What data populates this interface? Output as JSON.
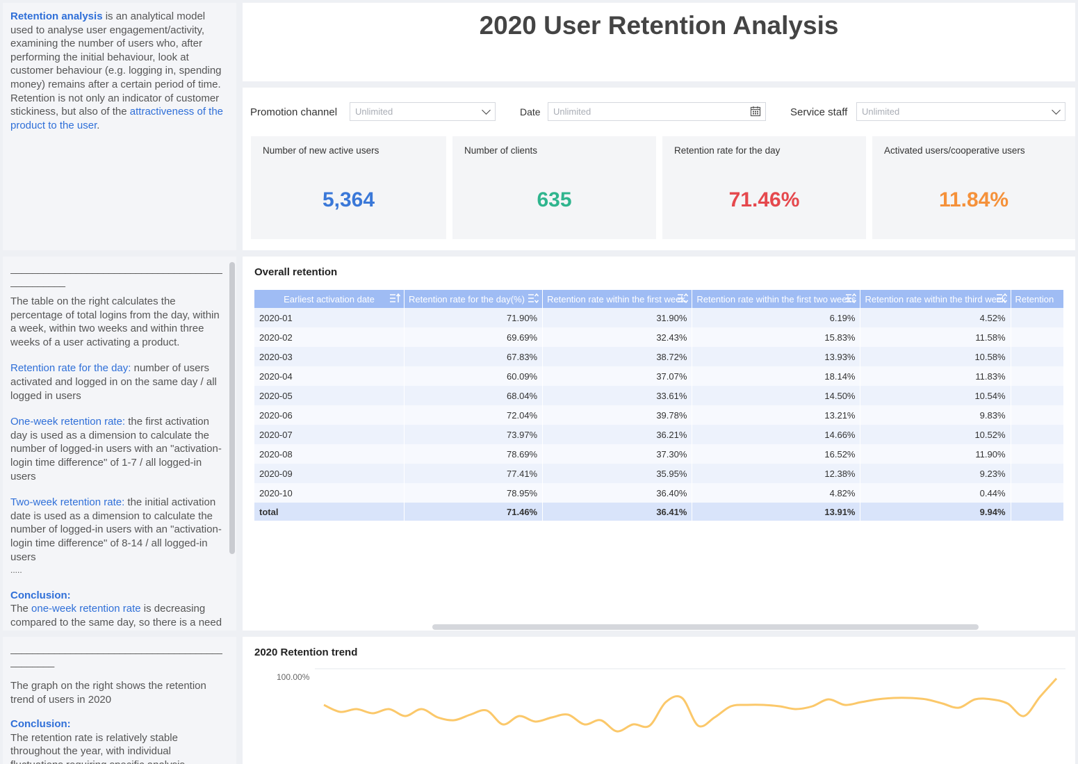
{
  "intro": {
    "term": "Retention analysis",
    "text1": " is an analytical model used to analyse user engagement/activity, examining the number of users who, after performing the initial behaviour, look at customer behaviour (e.g. logging in, spending money) remains after a certain period of time.",
    "text2": "Retention is not only an indicator of customer stickiness, but also of the",
    "text2_link": "attractiveness of the product to the user",
    "text2_end": "."
  },
  "notes1": {
    "divider": "_________________________________________",
    "divider_short": "__________",
    "intro": "The table on the right calculates the percentage of total logins from the day, within a week, within two weeks and within three weeks of a user activating a product.",
    "day_term": "Retention rate for the day:",
    "day_text": " number of users activated and logged in on the same day / all logged in users",
    "week_term": "One-week retention rate:",
    "week_text": " the first activation day is used as a dimension to calculate the number of logged-in users with an \"activation-login time difference\" of 1-7 / all logged-in users",
    "twoweek_term": "Two-week retention rate:",
    "twoweek_text": " the initial activation date is used as a dimension to calculate the number of logged-in users with an \"activation-login time difference\" of 8-14 / all logged-in users",
    "ellipsis": ".....",
    "conclusion_label": "Conclusion:",
    "conclusion_pre": "The ",
    "conclusion_link": "one-week retention rate",
    "conclusion_text": " is decreasing compared to the same day, so there is a need to improve user stickiness and"
  },
  "notes2": {
    "divider": "_________________________________________",
    "divider_short": "________",
    "intro": "The graph on the right shows the retention trend of users in 2020",
    "conclusion_label": "Conclusion:",
    "conclusion_text": "The retention rate is relatively stable throughout the year, with individual fluctuations requiring specific analysis."
  },
  "header": {
    "title": "2020 User Retention Analysis"
  },
  "filters": {
    "channel_label": "Promotion channel",
    "channel_value": "Unlimited",
    "date_label": "Date",
    "date_value": "Unlimited",
    "staff_label": "Service staff",
    "staff_value": "Unlimited"
  },
  "kpis": [
    {
      "label": "Number of new active users",
      "value": "5,364",
      "color": "#3a78d8"
    },
    {
      "label": "Number of clients",
      "value": "635",
      "color": "#2fb58e"
    },
    {
      "label": "Retention rate for the day",
      "value": "71.46%",
      "color": "#e5484d"
    },
    {
      "label": "Activated users/cooperative users",
      "value": "11.84%",
      "color": "#f5913a"
    }
  ],
  "table": {
    "title": "Overall retention",
    "columns": [
      "Earliest activation date",
      "Retention rate for the day(%)",
      "Retention rate within the first week",
      "Retention rate within the first two weeks",
      "Retention rate within the third week",
      "Retention"
    ],
    "rows": [
      [
        "2020-01",
        "71.90%",
        "31.90%",
        "6.19%",
        "4.52%"
      ],
      [
        "2020-02",
        "69.69%",
        "32.43%",
        "15.83%",
        "11.58%"
      ],
      [
        "2020-03",
        "67.83%",
        "38.72%",
        "13.93%",
        "10.58%"
      ],
      [
        "2020-04",
        "60.09%",
        "37.07%",
        "18.14%",
        "11.83%"
      ],
      [
        "2020-05",
        "68.04%",
        "33.61%",
        "14.50%",
        "10.54%"
      ],
      [
        "2020-06",
        "72.04%",
        "39.78%",
        "13.21%",
        "9.83%"
      ],
      [
        "2020-07",
        "73.97%",
        "36.21%",
        "14.66%",
        "10.52%"
      ],
      [
        "2020-08",
        "78.69%",
        "37.30%",
        "16.52%",
        "11.90%"
      ],
      [
        "2020-09",
        "77.41%",
        "35.95%",
        "12.38%",
        "9.23%"
      ],
      [
        "2020-10",
        "78.95%",
        "36.40%",
        "4.82%",
        "0.44%"
      ]
    ],
    "total": [
      "total",
      "71.46%",
      "36.41%",
      "13.91%",
      "9.94%"
    ]
  },
  "trend": {
    "title": "2020 Retention trend",
    "y_top_label": "100.00%"
  },
  "chart_data": {
    "type": "line",
    "title": "2020 Retention trend",
    "ylim": [
      0,
      100
    ],
    "y_tick_labels": [
      "100.00%"
    ],
    "series": [
      {
        "color": "#fbc86a",
        "values": [
          74,
          69,
          71,
          68,
          71,
          66,
          71,
          65,
          63,
          67,
          70,
          60,
          66,
          62,
          65,
          67,
          60,
          63,
          55,
          60,
          59,
          76,
          79,
          59,
          65,
          73,
          74,
          74,
          73,
          71,
          73,
          78,
          74,
          76,
          78,
          79,
          79,
          78,
          75,
          72,
          78,
          78,
          75,
          66,
          80,
          93
        ]
      }
    ]
  }
}
